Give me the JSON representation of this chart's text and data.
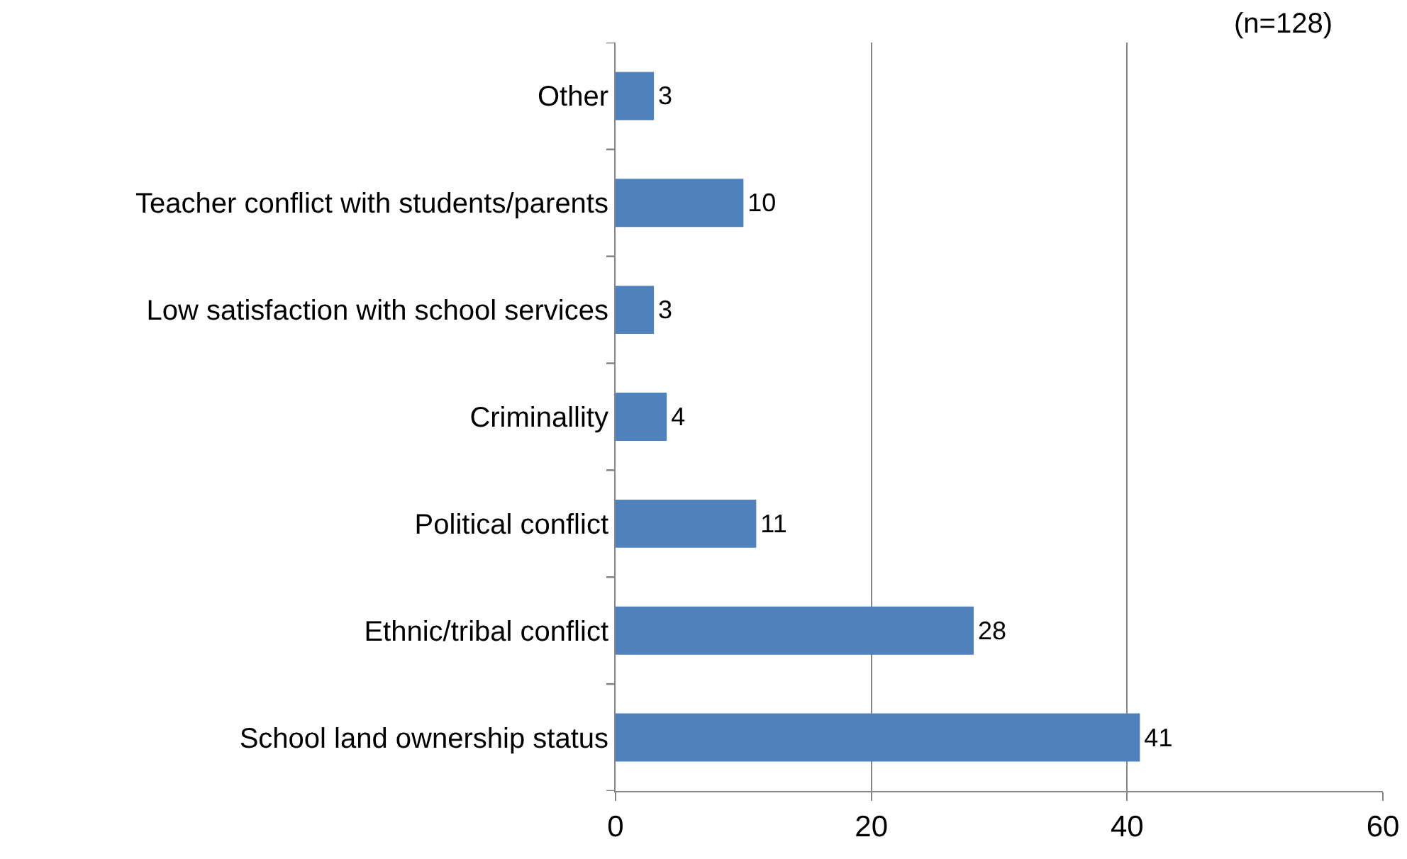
{
  "chart_data": {
    "type": "bar",
    "orientation": "horizontal",
    "categories": [
      "Other",
      "Teacher conflict with students/parents",
      "Low satisfaction with school services",
      "Criminallity",
      "Political conflict",
      "Ethnic/tribal conflict",
      "School land ownership status"
    ],
    "values": [
      3,
      10,
      3,
      4,
      11,
      28,
      41
    ],
    "color": "#4f81bd",
    "xlim": [
      0,
      60
    ],
    "xticks": [
      0,
      20,
      40,
      60
    ],
    "grid": "x",
    "data_labels": true,
    "annotations": [
      "(n=128)"
    ]
  }
}
